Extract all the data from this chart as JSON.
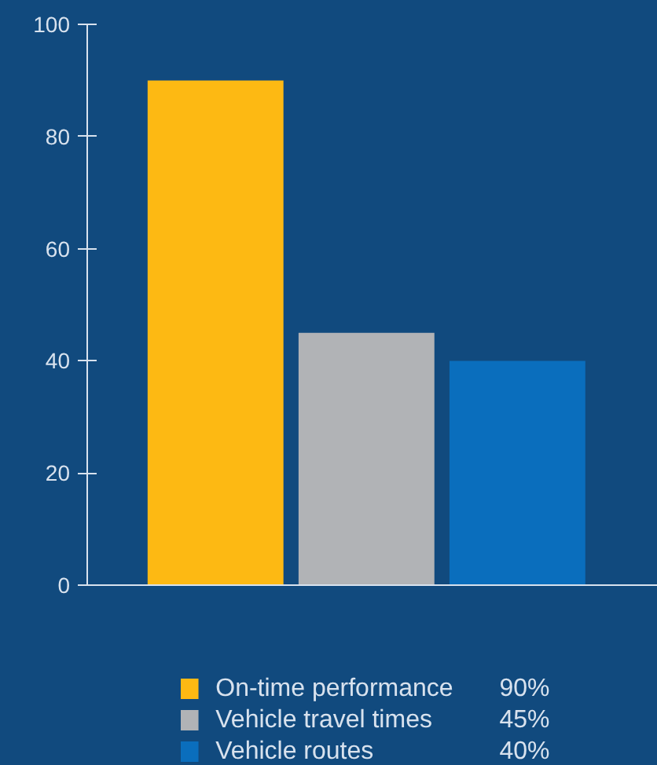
{
  "chart_data": {
    "type": "bar",
    "categories": [
      null,
      null,
      null
    ],
    "series": [
      {
        "name": "On-time performance",
        "color": "#fdb913",
        "values": [
          90,
          null,
          null
        ]
      },
      {
        "name": "Vehicle travel times",
        "color": "#b1b3b6",
        "values": [
          null,
          45,
          null
        ]
      },
      {
        "name": "Vehicle routes",
        "color": "#0a6ebd",
        "values": [
          null,
          null,
          40
        ]
      }
    ],
    "annotations": [
      "90%",
      "45%",
      "40%"
    ],
    "ylim": [
      0,
      100
    ],
    "yticks": [
      0,
      20,
      40,
      60,
      80,
      100
    ],
    "legend": "bottom"
  }
}
